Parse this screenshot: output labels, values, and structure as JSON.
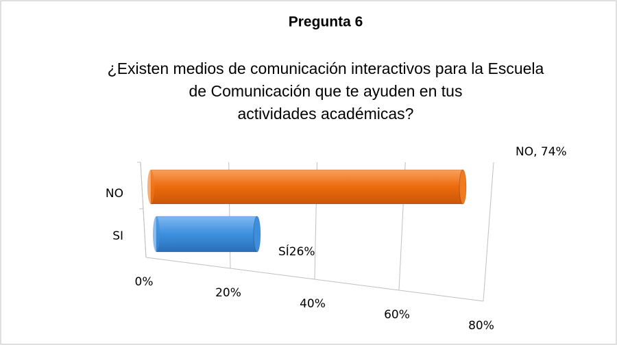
{
  "chart_data": {
    "type": "bar",
    "orientation": "horizontal",
    "title": "Pregunta 6",
    "subtitle": "¿Existen medios de comunicación interactivos para la Escuela de Comunicación que te ayuden en tus actividades académicas?",
    "categories": [
      "NO",
      "SI"
    ],
    "values": [
      74,
      26
    ],
    "value_labels": [
      "NO, 74%",
      "SÍ26%"
    ],
    "colors": [
      "#f07a1e",
      "#3d8fde"
    ],
    "xlim": [
      0,
      80
    ],
    "xticks": [
      {
        "value": 0,
        "label": "0%"
      },
      {
        "value": 20,
        "label": "20%"
      },
      {
        "value": 40,
        "label": "40%"
      },
      {
        "value": 60,
        "label": "60%"
      },
      {
        "value": 80,
        "label": "80%"
      }
    ],
    "grid": true
  }
}
